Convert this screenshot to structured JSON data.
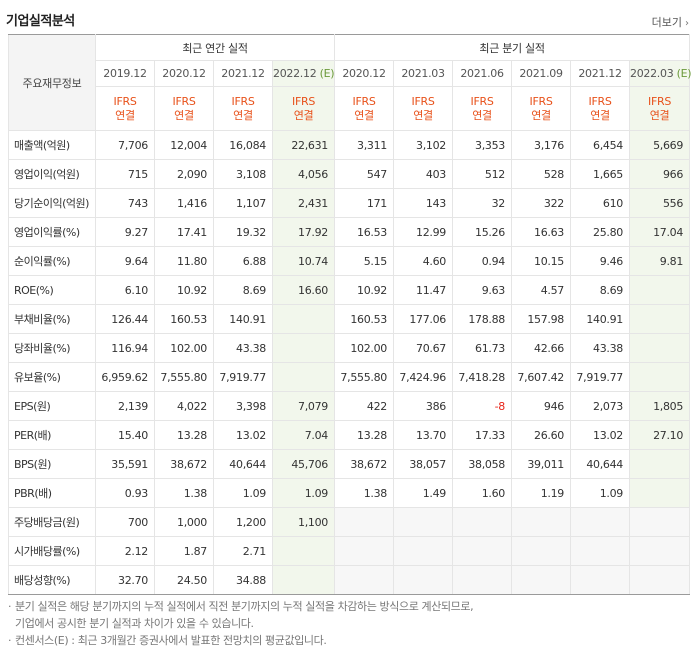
{
  "title": "기업실적분석",
  "more_label": "더보기",
  "row_header": "주요재무정보",
  "group_annual": "최근 연간 실적",
  "group_quarter": "최근 분기 실적",
  "periods": [
    {
      "label": "2019.12",
      "est": ""
    },
    {
      "label": "2020.12",
      "est": ""
    },
    {
      "label": "2021.12",
      "est": ""
    },
    {
      "label": "2022.12",
      "est": "(E)"
    },
    {
      "label": "2020.12",
      "est": ""
    },
    {
      "label": "2021.03",
      "est": ""
    },
    {
      "label": "2021.06",
      "est": ""
    },
    {
      "label": "2021.09",
      "est": ""
    },
    {
      "label": "2021.12",
      "est": ""
    },
    {
      "label": "2022.03",
      "est": "(E)"
    }
  ],
  "ifrs_line1": "IFRS",
  "ifrs_line2": "연결",
  "rows": [
    {
      "label": "매출액(억원)",
      "values": [
        "7,706",
        "12,004",
        "16,084",
        "22,631",
        "3,311",
        "3,102",
        "3,353",
        "3,176",
        "6,454",
        "5,669"
      ]
    },
    {
      "label": "영업이익(억원)",
      "values": [
        "715",
        "2,090",
        "3,108",
        "4,056",
        "547",
        "403",
        "512",
        "528",
        "1,665",
        "966"
      ]
    },
    {
      "label": "당기순이익(억원)",
      "values": [
        "743",
        "1,416",
        "1,107",
        "2,431",
        "171",
        "143",
        "32",
        "322",
        "610",
        "556"
      ]
    },
    {
      "label": "영업이익률(%)",
      "values": [
        "9.27",
        "17.41",
        "19.32",
        "17.92",
        "16.53",
        "12.99",
        "15.26",
        "16.63",
        "25.80",
        "17.04"
      ]
    },
    {
      "label": "순이익률(%)",
      "values": [
        "9.64",
        "11.80",
        "6.88",
        "10.74",
        "5.15",
        "4.60",
        "0.94",
        "10.15",
        "9.46",
        "9.81"
      ]
    },
    {
      "label": "ROE(%)",
      "values": [
        "6.10",
        "10.92",
        "8.69",
        "16.60",
        "10.92",
        "11.47",
        "9.63",
        "4.57",
        "8.69",
        ""
      ]
    },
    {
      "label": "부채비율(%)",
      "values": [
        "126.44",
        "160.53",
        "140.91",
        "",
        "160.53",
        "177.06",
        "178.88",
        "157.98",
        "140.91",
        ""
      ]
    },
    {
      "label": "당좌비율(%)",
      "values": [
        "116.94",
        "102.00",
        "43.38",
        "",
        "102.00",
        "70.67",
        "61.73",
        "42.66",
        "43.38",
        ""
      ]
    },
    {
      "label": "유보율(%)",
      "values": [
        "6,959.62",
        "7,555.80",
        "7,919.77",
        "",
        "7,555.80",
        "7,424.96",
        "7,418.28",
        "7,607.42",
        "7,919.77",
        ""
      ]
    },
    {
      "label": "EPS(원)",
      "values": [
        "2,139",
        "4,022",
        "3,398",
        "7,079",
        "422",
        "386",
        "-8",
        "946",
        "2,073",
        "1,805"
      ]
    },
    {
      "label": "PER(배)",
      "values": [
        "15.40",
        "13.28",
        "13.02",
        "7.04",
        "13.28",
        "13.70",
        "17.33",
        "26.60",
        "13.02",
        "27.10"
      ]
    },
    {
      "label": "BPS(원)",
      "values": [
        "35,591",
        "38,672",
        "40,644",
        "45,706",
        "38,672",
        "38,057",
        "38,058",
        "39,011",
        "40,644",
        ""
      ]
    },
    {
      "label": "PBR(배)",
      "values": [
        "0.93",
        "1.38",
        "1.09",
        "1.09",
        "1.38",
        "1.49",
        "1.60",
        "1.19",
        "1.09",
        ""
      ]
    },
    {
      "label": "주당배당금(원)",
      "values": [
        "700",
        "1,000",
        "1,200",
        "1,100",
        "",
        "",
        "",
        "",
        "",
        ""
      ]
    },
    {
      "label": "시가배당률(%)",
      "values": [
        "2.12",
        "1.87",
        "2.71",
        "",
        "",
        "",
        "",
        "",
        "",
        ""
      ]
    },
    {
      "label": "배당성향(%)",
      "values": [
        "32.70",
        "24.50",
        "34.88",
        "",
        "",
        "",
        "",
        "",
        "",
        ""
      ]
    }
  ],
  "notes": [
    "분기 실적은 해당 분기까지의 누적 실적에서 직전 분기까지의 누적 실적을 차감하는 방식으로 계산되므로,",
    "기업에서 공시한 분기 실적과 차이가 있을 수 있습니다.",
    "컨센서스(E) : 최근 3개월간 증권사에서 발표한 전망치의 평균값입니다."
  ],
  "colors": {
    "ifrs": "#e8511a",
    "estimate_bg": "#f2f7ec",
    "negative": "#e8251a"
  }
}
